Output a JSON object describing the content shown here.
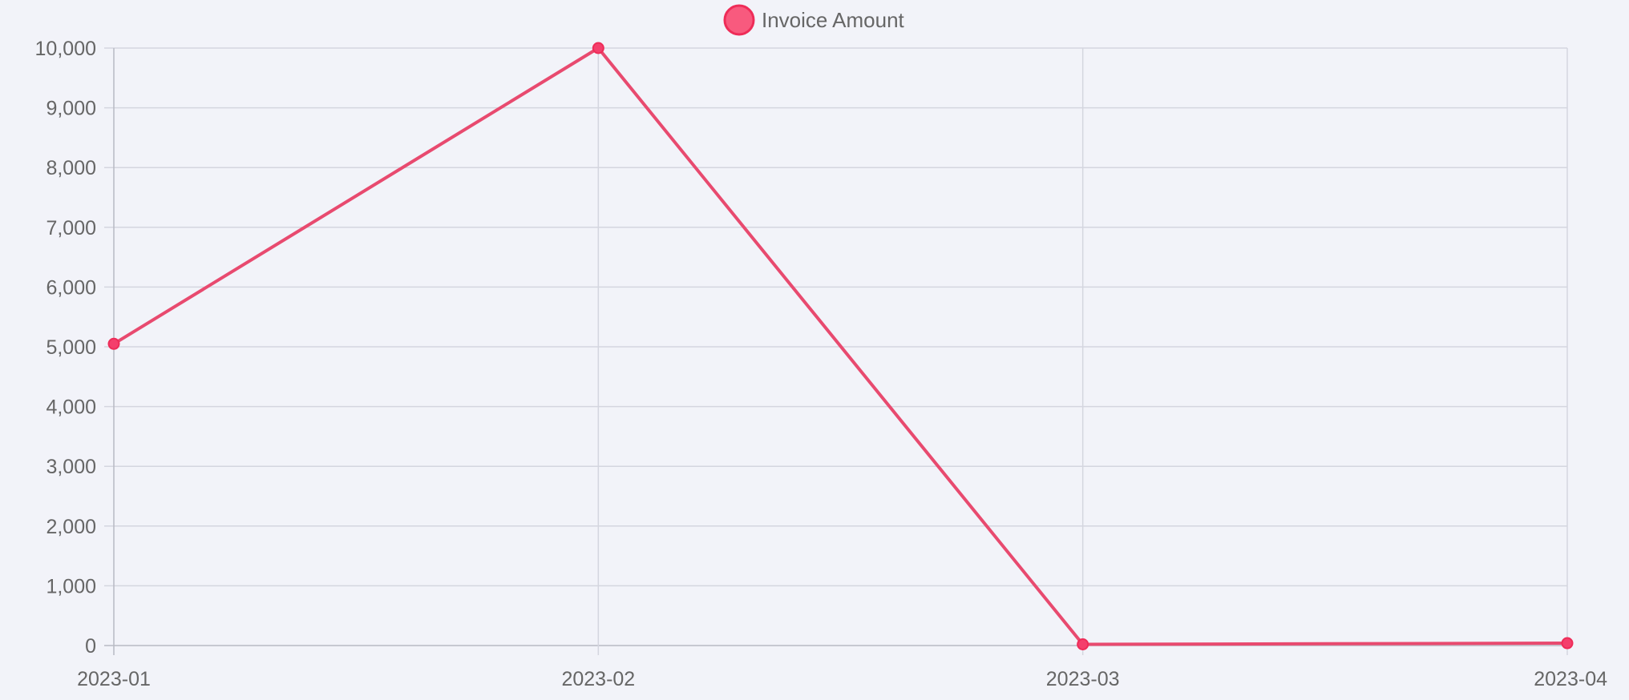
{
  "chart_data": {
    "type": "line",
    "title": "",
    "xlabel": "",
    "ylabel": "",
    "categories": [
      "2023-01",
      "2023-02",
      "2023-03",
      "2023-04"
    ],
    "series": [
      {
        "name": "Invoice Amount",
        "values": [
          5050,
          10000,
          20,
          40
        ],
        "color": "#e84a6f"
      }
    ],
    "ylim": [
      0,
      10000
    ],
    "yticks": [
      0,
      1000,
      2000,
      3000,
      4000,
      5000,
      6000,
      7000,
      8000,
      9000,
      10000
    ],
    "ytick_labels": [
      "0",
      "1,000",
      "2,000",
      "3,000",
      "4,000",
      "5,000",
      "6,000",
      "7,000",
      "8,000",
      "9,000",
      "10,000"
    ],
    "grid": true,
    "legend_position": "top-center"
  },
  "colors": {
    "background": "#f2f3f9",
    "grid": "#d4d6df",
    "axis": "#b8bac4",
    "line": "#e84a6f",
    "point": "#f43f6c",
    "legend_fill": "#f85a7e",
    "legend_stroke": "#ee2c58",
    "text": "#666666"
  }
}
